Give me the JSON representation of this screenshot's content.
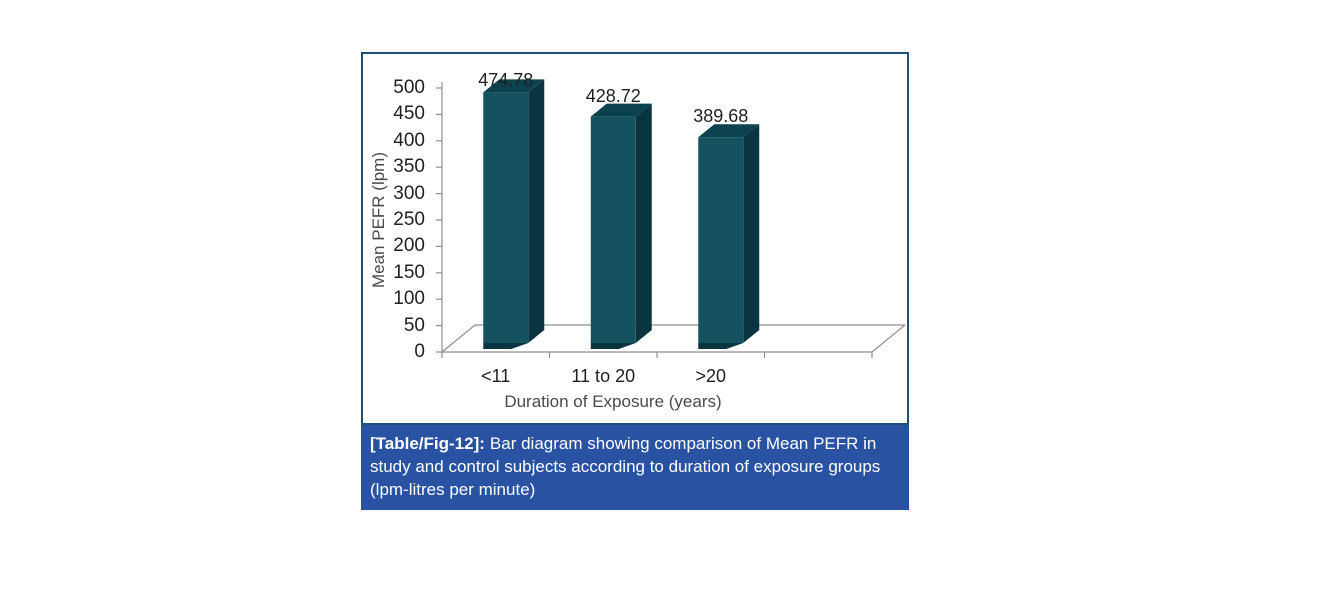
{
  "page": {
    "background": "#ffffff"
  },
  "figure": {
    "border_color": "#224f78",
    "caption": {
      "prefix": "[Table/Fig-12]:",
      "text": "Bar diagram showing comparison of Mean PEFR in study and control subjects according to duration of exposure groups (lpm-litres per minute)",
      "background": "#2952a3",
      "text_color": "#ffffff"
    }
  },
  "chart_data": {
    "type": "bar",
    "style": "3d-column",
    "title": "",
    "categories": [
      "<11",
      "11 to 20",
      ">20"
    ],
    "values": [
      474.78,
      428.72,
      389.68
    ],
    "value_labels": [
      "474.78",
      "428.72",
      "389.68"
    ],
    "xlabel": "Duration of Exposure (years)",
    "ylabel": "Mean PEFR (lpm)",
    "ylim": [
      0,
      500
    ],
    "yticks": [
      0,
      50,
      100,
      150,
      200,
      250,
      300,
      350,
      400,
      450,
      500
    ],
    "grid": false,
    "legend": "none",
    "colors": {
      "bar_front": "#15525f",
      "bar_top": "#0c4150",
      "bar_side": "#093440",
      "axis": "#8f8f8f",
      "tick_label": "#1f1f1f",
      "axis_title": "#4a4a4a"
    }
  }
}
